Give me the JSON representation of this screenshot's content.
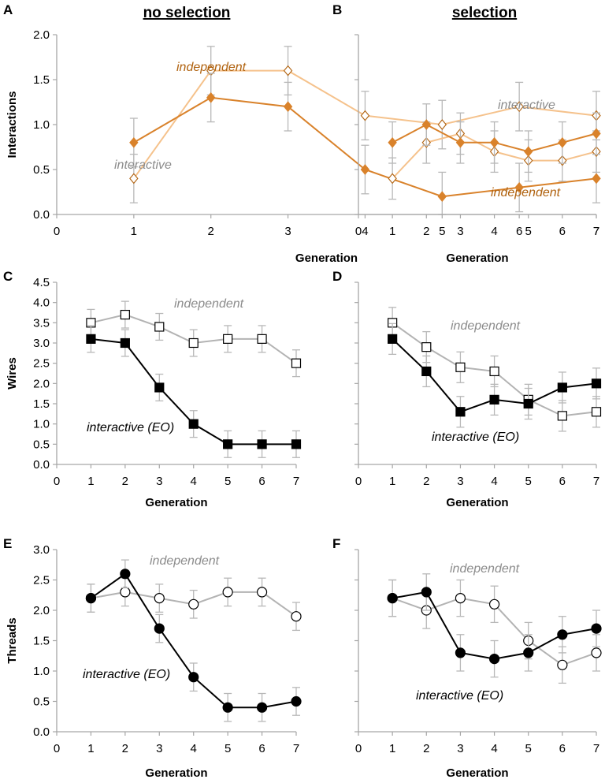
{
  "columns": [
    "no selection",
    "selection"
  ],
  "colors": {
    "interactive_orange": "#d9822b",
    "independent_orange": "#f5c28c",
    "independent_annot_orange": "#b0620f",
    "interactive_black": "#000000",
    "independent_gray": "#b3b3b3",
    "gray_text": "#8c8c8c",
    "axis": "#a6a6a6"
  },
  "chart_data": [
    {
      "panel": "A",
      "type": "line",
      "xlabel": "Generation",
      "ylabel": "Interactions",
      "x_ticks": [
        0,
        1,
        2,
        3,
        4,
        5,
        6,
        7
      ],
      "y_ticks": [
        "0.0",
        "0.5",
        "1.0",
        "1.5",
        "2.0"
      ],
      "ylim": [
        0,
        2.0
      ],
      "series": [
        {
          "name": "independent",
          "marker": "open-diamond",
          "color": "#f5c28c",
          "x": [
            1,
            2,
            3,
            4,
            5,
            6,
            7
          ],
          "values": [
            0.4,
            1.6,
            1.6,
            1.1,
            1.0,
            1.2,
            1.1
          ],
          "err": [
            0.27,
            0.27,
            0.27,
            0.27,
            0.27,
            0.27,
            0.27
          ]
        },
        {
          "name": "interactive",
          "marker": "filled-diamond",
          "color": "#d9822b",
          "x": [
            1,
            2,
            3,
            4,
            5,
            6,
            7
          ],
          "values": [
            0.8,
            1.3,
            1.2,
            0.5,
            0.2,
            0.3,
            0.4
          ],
          "err": [
            0.27,
            0.27,
            0.27,
            0.27,
            0.27,
            0.27,
            0.27
          ]
        }
      ],
      "annotations": [
        {
          "text": "independent",
          "color": "#b0620f"
        },
        {
          "text": "interactive",
          "color": "#8c8c8c"
        }
      ]
    },
    {
      "panel": "B",
      "type": "line",
      "xlabel": "Generation",
      "ylabel": "",
      "x_ticks": [
        0,
        1,
        2,
        3,
        4,
        5,
        6,
        7
      ],
      "y_ticks": [],
      "ylim": [
        0,
        2.0
      ],
      "series": [
        {
          "name": "independent",
          "marker": "open-diamond",
          "color": "#f5c28c",
          "x": [
            1,
            2,
            3,
            4,
            5,
            6,
            7
          ],
          "values": [
            0.4,
            0.8,
            0.9,
            0.7,
            0.6,
            0.6,
            0.7
          ],
          "err": [
            0.23,
            0.23,
            0.23,
            0.23,
            0.23,
            0.23,
            0.23
          ]
        },
        {
          "name": "interactive",
          "marker": "filled-diamond",
          "color": "#d9822b",
          "x": [
            1,
            2,
            3,
            4,
            5,
            6,
            7
          ],
          "values": [
            0.8,
            1.0,
            0.8,
            0.8,
            0.7,
            0.8,
            0.9
          ],
          "err": [
            0.23,
            0.23,
            0.23,
            0.23,
            0.23,
            0.23,
            0.23
          ]
        }
      ],
      "annotations": [
        {
          "text": "interactive",
          "color": "#8c8c8c"
        },
        {
          "text": "independent",
          "color": "#b0620f"
        }
      ]
    },
    {
      "panel": "C",
      "type": "line",
      "xlabel": "Generation",
      "ylabel": "Wires",
      "x_ticks": [
        0,
        1,
        2,
        3,
        4,
        5,
        6,
        7
      ],
      "y_ticks": [
        "0.0",
        "0.5",
        "1.0",
        "1.5",
        "2.0",
        "2.5",
        "3.0",
        "3.5",
        "4.0",
        "4.5"
      ],
      "ylim": [
        0,
        4.5
      ],
      "series": [
        {
          "name": "independent",
          "marker": "open-square",
          "color": "#b3b3b3",
          "x": [
            1,
            2,
            3,
            4,
            5,
            6,
            7
          ],
          "values": [
            3.5,
            3.7,
            3.4,
            3.0,
            3.1,
            3.1,
            2.5
          ],
          "err": [
            0.33,
            0.33,
            0.33,
            0.33,
            0.33,
            0.33,
            0.33
          ]
        },
        {
          "name": "interactive (EO)",
          "marker": "filled-square",
          "color": "#000000",
          "x": [
            1,
            2,
            3,
            4,
            5,
            6,
            7
          ],
          "values": [
            3.1,
            3.0,
            1.9,
            1.0,
            0.5,
            0.5,
            0.5
          ],
          "err": [
            0.33,
            0.33,
            0.33,
            0.33,
            0.33,
            0.33,
            0.33
          ]
        }
      ],
      "annotations": [
        {
          "text": "independent",
          "color": "#8c8c8c"
        },
        {
          "text": "interactive (EO)",
          "color": "#000000"
        }
      ]
    },
    {
      "panel": "D",
      "type": "line",
      "xlabel": "Generation",
      "ylabel": "",
      "x_ticks": [
        0,
        1,
        2,
        3,
        4,
        5,
        6,
        7
      ],
      "y_ticks": [],
      "ylim": [
        0,
        4.5
      ],
      "series": [
        {
          "name": "independent",
          "marker": "open-square",
          "color": "#b3b3b3",
          "x": [
            1,
            2,
            3,
            4,
            5,
            6,
            7
          ],
          "values": [
            3.5,
            2.9,
            2.4,
            2.3,
            1.6,
            1.2,
            1.3
          ],
          "err": [
            0.38,
            0.38,
            0.38,
            0.38,
            0.38,
            0.38,
            0.38
          ]
        },
        {
          "name": "interactive (EO)",
          "marker": "filled-square",
          "color": "#000000",
          "x": [
            1,
            2,
            3,
            4,
            5,
            6,
            7
          ],
          "values": [
            3.1,
            2.3,
            1.3,
            1.6,
            1.5,
            1.9,
            2.0
          ],
          "err": [
            0.38,
            0.38,
            0.38,
            0.38,
            0.38,
            0.38,
            0.38
          ]
        }
      ],
      "annotations": [
        {
          "text": "independent",
          "color": "#8c8c8c"
        },
        {
          "text": "interactive (EO)",
          "color": "#000000"
        }
      ]
    },
    {
      "panel": "E",
      "type": "line",
      "xlabel": "Generation",
      "ylabel": "Threads",
      "x_ticks": [
        0,
        1,
        2,
        3,
        4,
        5,
        6,
        7
      ],
      "y_ticks": [
        "0.0",
        "0.5",
        "1.0",
        "1.5",
        "2.0",
        "2.5",
        "3.0"
      ],
      "ylim": [
        0,
        3.0
      ],
      "series": [
        {
          "name": "independent",
          "marker": "open-circle",
          "color": "#b3b3b3",
          "x": [
            1,
            2,
            3,
            4,
            5,
            6,
            7
          ],
          "values": [
            2.2,
            2.3,
            2.2,
            2.1,
            2.3,
            2.3,
            1.9
          ],
          "err": [
            0.23,
            0.23,
            0.23,
            0.23,
            0.23,
            0.23,
            0.23
          ]
        },
        {
          "name": "interactive (EO)",
          "marker": "filled-circle",
          "color": "#000000",
          "x": [
            1,
            2,
            3,
            4,
            5,
            6,
            7
          ],
          "values": [
            2.2,
            2.6,
            1.7,
            0.9,
            0.4,
            0.4,
            0.5
          ],
          "err": [
            0.23,
            0.23,
            0.23,
            0.23,
            0.23,
            0.23,
            0.23
          ]
        }
      ],
      "annotations": [
        {
          "text": "independent",
          "color": "#8c8c8c"
        },
        {
          "text": "interactive (EO)",
          "color": "#000000"
        }
      ]
    },
    {
      "panel": "F",
      "type": "line",
      "xlabel": "Generation",
      "ylabel": "",
      "x_ticks": [
        0,
        1,
        2,
        3,
        4,
        5,
        6,
        7
      ],
      "y_ticks": [],
      "ylim": [
        0,
        3.0
      ],
      "series": [
        {
          "name": "independent",
          "marker": "open-circle",
          "color": "#b3b3b3",
          "x": [
            1,
            2,
            3,
            4,
            5,
            6,
            7
          ],
          "values": [
            2.2,
            2.0,
            2.2,
            2.1,
            1.5,
            1.1,
            1.3
          ],
          "err": [
            0.3,
            0.3,
            0.3,
            0.3,
            0.3,
            0.3,
            0.3
          ]
        },
        {
          "name": "interactive (EO)",
          "marker": "filled-circle",
          "color": "#000000",
          "x": [
            1,
            2,
            3,
            4,
            5,
            6,
            7
          ],
          "values": [
            2.2,
            2.3,
            1.3,
            1.2,
            1.3,
            1.6,
            1.7
          ],
          "err": [
            0.3,
            0.3,
            0.3,
            0.3,
            0.3,
            0.3,
            0.3
          ]
        }
      ],
      "annotations": [
        {
          "text": "independent",
          "color": "#8c8c8c"
        },
        {
          "text": "interactive (EO)",
          "color": "#000000"
        }
      ]
    }
  ]
}
